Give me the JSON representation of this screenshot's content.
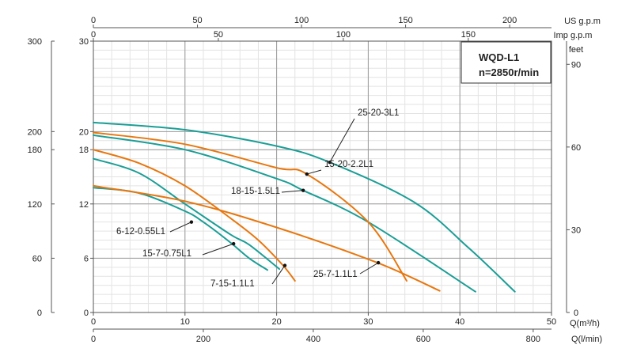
{
  "chart_data": {
    "type": "line",
    "title": "WQD-L1",
    "subtitle": "n=2850r/min",
    "x_axis_bottom": {
      "label": "Q(m³/h)",
      "range": [
        0,
        50
      ],
      "ticks": [
        "0",
        "10",
        "20",
        "30",
        "40",
        "50"
      ]
    },
    "x_axis_lmin": {
      "label": "Q(l/min)",
      "range": [
        0,
        833.3
      ],
      "ticks": [
        "0",
        "200",
        "400",
        "600",
        "800"
      ]
    },
    "x_axis_usgpm": {
      "label": "US g.p.m",
      "range": [
        0,
        220.1
      ],
      "ticks": [
        "0",
        "50",
        "100",
        "150",
        "200"
      ]
    },
    "x_axis_impgpm": {
      "label": "Imp g.p.m",
      "range": [
        0,
        183.3
      ],
      "ticks": [
        "0",
        "50",
        "100",
        "150"
      ]
    },
    "y_axis_head_m": {
      "range": [
        0,
        30
      ],
      "ticks": [
        "0",
        "6",
        "12",
        "18",
        "20",
        "30"
      ]
    },
    "y_axis_outer_left": {
      "ticks": [
        "0",
        "60",
        "120",
        "180",
        "200",
        "300"
      ]
    },
    "y_axis_feet": {
      "label": "feet",
      "range": [
        0,
        98.4
      ],
      "ticks": [
        "0",
        "30",
        "60",
        "90"
      ]
    },
    "grid": true,
    "series": [
      {
        "name": "6-12-0.55L1",
        "color": "#1a9e96",
        "q": [
          0,
          5,
          10,
          12,
          15,
          17,
          19
        ],
        "h": [
          13.8,
          13.2,
          11.2,
          10.0,
          7.7,
          6.0,
          4.7
        ]
      },
      {
        "name": "15-7-0.75L1",
        "color": "#1a9e96",
        "q": [
          0,
          5,
          10,
          15,
          17,
          20.3
        ],
        "h": [
          17.0,
          15.4,
          12.0,
          8.6,
          7.5,
          4.8
        ]
      },
      {
        "name": "7-15-1.1L1",
        "color": "#e8770e",
        "q": [
          0,
          5,
          10,
          15,
          18,
          20.7,
          22
        ],
        "h": [
          18.0,
          16.5,
          14.0,
          10.4,
          8.0,
          5.2,
          3.5
        ]
      },
      {
        "name": "25-7-1.1L1",
        "color": "#e8770e",
        "q": [
          0,
          10,
          20,
          31,
          37.8
        ],
        "h": [
          14.0,
          12.3,
          9.4,
          5.5,
          2.4
        ]
      },
      {
        "name": "18-15-1.5L1",
        "color": "#1a9e96",
        "q": [
          0,
          10,
          20,
          22.9,
          30,
          41.7
        ],
        "h": [
          19.6,
          18.0,
          14.8,
          13.5,
          10.0,
          2.3
        ]
      },
      {
        "name": "15-20-2.2L1",
        "color": "#e8770e",
        "q": [
          0,
          10,
          20,
          23.3,
          30,
          34.2
        ],
        "h": [
          19.9,
          18.6,
          16.0,
          15.3,
          10.0,
          3.5
        ]
      },
      {
        "name": "25-20-3L1",
        "color": "#1a9e96",
        "q": [
          0,
          10,
          20,
          25.8,
          35,
          41,
          46
        ],
        "h": [
          21.0,
          20.2,
          18.4,
          16.6,
          12.2,
          7.1,
          2.3
        ]
      }
    ],
    "annotations": [
      {
        "text": "25-20-3L1",
        "q": 25.8,
        "h": 16.6
      },
      {
        "text": "15-20-2.2L1",
        "q": 23.3,
        "h": 15.3
      },
      {
        "text": "18-15-1.5L1",
        "q": 22.9,
        "h": 13.5
      },
      {
        "text": "6-12-0.55L1",
        "q": 10.7,
        "h": 10.0
      },
      {
        "text": "15-7-0.75L1",
        "q": 15.3,
        "h": 7.6
      },
      {
        "text": "7-15-1.1L1",
        "q": 20.9,
        "h": 5.2
      },
      {
        "text": "25-7-1.1L1",
        "q": 31.1,
        "h": 5.5
      }
    ]
  }
}
